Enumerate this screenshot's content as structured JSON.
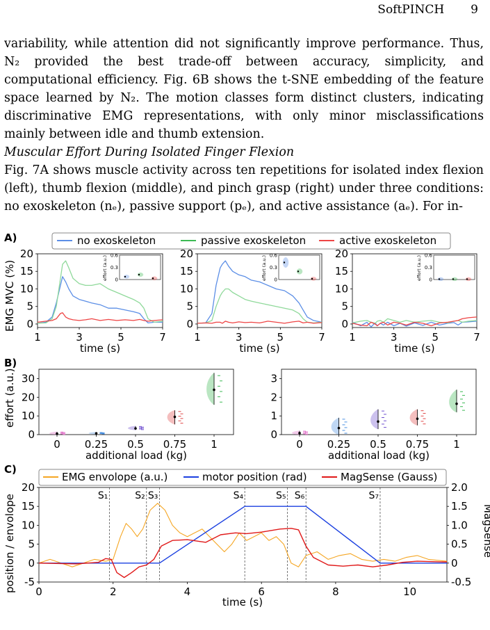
{
  "running_head": {
    "title": "SoftPINCH",
    "page": "9"
  },
  "paragraphs": [
    "variability, while attention did not significantly improve performance. Thus, N₂ provided the best trade-off between accuracy, simplicity, and computational efficiency. Fig. 6B shows the t-SNE embedding of the feature space learned by N₂. The motion classes form distinct clusters, indicating discriminative EMG representations, with only minor misclassifications mainly between idle and thumb extension."
  ],
  "subheading": "Muscular Effort During Isolated Finger Flexion",
  "paragraph2": "Fig. 7A shows muscle activity across ten repetitions for isolated index flexion (left), thumb flexion (middle), and pinch grasp (right) under three conditions: no exoskeleton (nₑ), passive support (pₑ), and active assistance (aₑ). For in-",
  "colors": {
    "no": "#5b8ee6",
    "passive": "#3cba54",
    "active": "#ee4444",
    "orange": "#f5a623",
    "blue": "#1a3fe0",
    "red": "#e01818"
  },
  "panels": {
    "A": "A)",
    "B": "B)",
    "C": "C)"
  },
  "chart_data": [
    {
      "type": "line",
      "panel": "A",
      "legend": [
        "no exoskeleton",
        "passive exoskeleton",
        "active exoskeleton"
      ],
      "ylabel": "EMG MVC (%)",
      "xlabel": "time (s)",
      "xlim": [
        1,
        7
      ],
      "ylim": [
        -1,
        20
      ],
      "xticks": [
        "1",
        "3",
        "5",
        "7"
      ],
      "yticks": [
        "0",
        "5",
        "10",
        "15",
        "20"
      ],
      "subplots": [
        {
          "name": "index flexion",
          "x": [
            1,
            1.4,
            1.7,
            1.9,
            2.1,
            2.2,
            2.35,
            2.5,
            2.7,
            3,
            3.3,
            3.6,
            4,
            4.4,
            4.8,
            5.2,
            5.6,
            5.9,
            6.1,
            6.3,
            6.6,
            7
          ],
          "series": [
            {
              "name": "no exoskeleton",
              "values": [
                0.2,
                0.5,
                2,
                6,
                11,
                13.5,
                12,
                10,
                8,
                7,
                6.5,
                6,
                5.5,
                4.5,
                4.5,
                4,
                3.5,
                3,
                1.5,
                0.3,
                0.5,
                0.5
              ]
            },
            {
              "name": "passive exoskeleton",
              "values": [
                0.2,
                0.3,
                1.5,
                5,
                13,
                17,
                18,
                16,
                13,
                11.5,
                11,
                11,
                11.5,
                10,
                9,
                8,
                7,
                6,
                4.5,
                1.5,
                0.5,
                0.8
              ]
            },
            {
              "name": "active exoskeleton",
              "values": [
                0.5,
                0.8,
                1,
                1.5,
                3,
                3.2,
                2,
                1.5,
                1.2,
                1,
                1.2,
                1.5,
                1,
                1.3,
                1,
                1.2,
                1,
                1.3,
                1,
                0.8,
                1,
                1.2
              ]
            }
          ],
          "inset": {
            "ylim": [
              0,
              0.6
            ],
            "yticks": [
              "0.6",
              "0.3",
              "0"
            ],
            "ylabel": "effort (a.u.)",
            "values": [
              0.07,
              0.12,
              0.03
            ]
          }
        },
        {
          "name": "thumb flexion",
          "x": [
            1,
            1.4,
            1.7,
            1.9,
            2.1,
            2.2,
            2.35,
            2.5,
            2.7,
            3,
            3.3,
            3.6,
            4,
            4.4,
            4.8,
            5.2,
            5.6,
            5.9,
            6.1,
            6.3,
            6.6,
            7
          ],
          "series": [
            {
              "name": "no exoskeleton",
              "values": [
                0.2,
                0.3,
                3,
                11,
                16,
                17,
                18,
                16.5,
                15,
                14,
                13.5,
                12.5,
                12,
                11,
                10,
                9.5,
                8,
                6,
                4,
                2,
                1,
                0.5
              ]
            },
            {
              "name": "passive exoskeleton",
              "values": [
                0.2,
                0.3,
                1,
                5,
                8,
                9,
                10,
                10,
                9,
                8,
                7,
                6.5,
                6,
                5.5,
                5,
                4.5,
                4,
                3,
                1.5,
                0.5,
                0.3,
                0.5
              ]
            },
            {
              "name": "active exoskeleton",
              "values": [
                0.2,
                0.3,
                0.2,
                0.5,
                0.5,
                0.2,
                0.8,
                0.5,
                0.3,
                0.6,
                0.4,
                0.5,
                0.3,
                0.8,
                0.5,
                0.2,
                0.6,
                0.8,
                0.3,
                0.5,
                0.2,
                0.4
              ]
            }
          ],
          "inset": {
            "ylim": [
              0,
              0.6
            ],
            "yticks": [
              "0.6",
              "0.3",
              "0"
            ],
            "ylabel": "effort (a.u.)",
            "values": [
              0.42,
              0.2,
              0.02
            ]
          }
        },
        {
          "name": "pinch grasp",
          "x": [
            1,
            1.4,
            1.7,
            1.9,
            2.1,
            2.2,
            2.35,
            2.5,
            2.7,
            3,
            3.3,
            3.6,
            4,
            4.4,
            4.8,
            5.2,
            5.6,
            5.9,
            6.1,
            6.3,
            6.6,
            7
          ],
          "series": [
            {
              "name": "no exoskeleton",
              "values": [
                0.5,
                -0.5,
                0.5,
                -0.8,
                0.3,
                -0.5,
                0.2,
                -0.3,
                0.5,
                -0.5,
                0.2,
                -0.6,
                0.3,
                -0.4,
                0.5,
                -0.3,
                0.2,
                0.4,
                -0.3,
                0.5,
                0.6,
                0.8
              ]
            },
            {
              "name": "passive exoskeleton",
              "values": [
                0.3,
                0.8,
                1,
                0.5,
                0.2,
                0.8,
                1,
                0.5,
                1.5,
                1,
                0.5,
                1,
                0.5,
                0.8,
                1,
                0.5,
                0.3,
                0.8,
                1,
                0.5,
                0.8,
                1
              ]
            },
            {
              "name": "active exoskeleton",
              "values": [
                0.2,
                -0.3,
                -0.5,
                0.5,
                0,
                -0.5,
                0.2,
                0.5,
                -0.3,
                0.5,
                0.2,
                -0.3,
                0.5,
                0.2,
                -0.5,
                0.3,
                0.5,
                0.8,
                1,
                1.5,
                1.8,
                2
              ]
            }
          ],
          "inset": {
            "ylim": [
              0,
              0.6
            ],
            "yticks": [
              "0.6",
              "0.3",
              "0"
            ],
            "ylabel": "effort (a.u.)",
            "values": [
              0.01,
              0.01,
              0.01
            ]
          }
        }
      ]
    },
    {
      "type": "violin",
      "panel": "B",
      "ylabel": "effort (a.u.)",
      "xlabel": "additional load (kg)",
      "categories": [
        "0",
        "0.25",
        "0.5",
        "0.75",
        "1"
      ],
      "category_colors": [
        "#e070c8",
        "#4a90e2",
        "#7050d0",
        "#e04848",
        "#3cba54"
      ],
      "subplots": [
        {
          "ylim": [
            0,
            35
          ],
          "yticks": [
            "0",
            "10",
            "20",
            "30"
          ],
          "medians": [
            0.5,
            0.7,
            3.3,
            9.5,
            24
          ],
          "ranges": [
            [
              0,
              1.5
            ],
            [
              0.3,
              1.2
            ],
            [
              2.5,
              4.5
            ],
            [
              5.5,
              13
            ],
            [
              16,
              33
            ]
          ]
        },
        {
          "ylim": [
            0,
            3.5
          ],
          "yticks": [
            "0",
            "1",
            "2",
            "3"
          ],
          "medians": [
            0.08,
            0.35,
            0.7,
            0.85,
            1.65
          ],
          "ranges": [
            [
              0,
              0.2
            ],
            [
              0,
              0.9
            ],
            [
              0.3,
              1.35
            ],
            [
              0.5,
              1.35
            ],
            [
              1.2,
              2.4
            ]
          ]
        }
      ]
    },
    {
      "type": "line",
      "panel": "C",
      "legend": [
        "EMG envolope (a.u.)",
        "motor position (rad)",
        "MagSense (Gauss)"
      ],
      "ylabel": "position / envolope",
      "ylabel_right": "MagSense",
      "xlabel": "time (s)",
      "xlim": [
        0,
        11
      ],
      "ylim": [
        -5,
        20
      ],
      "ylim_right": [
        -0.5,
        2.0
      ],
      "xticks": [
        "0",
        "2",
        "4",
        "6",
        "8",
        "10"
      ],
      "yticks": [
        "-5",
        "0",
        "5",
        "10",
        "15",
        "20"
      ],
      "yticks_right": [
        "-0.5",
        "0",
        "0.5",
        "1.0",
        "1.5",
        "2.0"
      ],
      "events": [
        {
          "label": "S₁",
          "x": 1.9
        },
        {
          "label": "S₂",
          "x": 2.9
        },
        {
          "label": "S₃",
          "x": 3.25
        },
        {
          "label": "S₄",
          "x": 5.55
        },
        {
          "label": "S₅",
          "x": 6.7
        },
        {
          "label": "S₆",
          "x": 7.2
        },
        {
          "label": "S₇",
          "x": 9.2
        }
      ],
      "series": [
        {
          "name": "EMG envolope (a.u.)",
          "x": [
            0,
            0.3,
            0.6,
            0.9,
            1.2,
            1.5,
            1.8,
            2.0,
            2.2,
            2.35,
            2.5,
            2.65,
            2.8,
            3.0,
            3.2,
            3.4,
            3.6,
            3.8,
            4.0,
            4.2,
            4.4,
            4.6,
            4.8,
            5.0,
            5.2,
            5.4,
            5.6,
            5.8,
            6.0,
            6.2,
            6.4,
            6.6,
            6.8,
            7.0,
            7.2,
            7.5,
            7.8,
            8.1,
            8.4,
            8.7,
            9.0,
            9.3,
            9.6,
            9.9,
            10.2,
            10.5,
            11
          ],
          "values": [
            0,
            1,
            0,
            -1,
            0,
            1,
            0.5,
            1,
            7,
            10.5,
            9,
            7,
            9,
            14,
            15.8,
            14,
            10,
            8,
            7,
            8,
            9,
            7,
            5,
            3,
            5,
            8,
            6,
            7,
            8,
            6,
            7,
            5,
            0,
            -1,
            2,
            3,
            1,
            2,
            2.5,
            1,
            0.5,
            1,
            0.5,
            1.5,
            2,
            1,
            0.5
          ]
        },
        {
          "name": "motor position (rad)",
          "x": [
            0,
            3.25,
            5.55,
            7.2,
            9.2,
            11
          ],
          "values": [
            0,
            0,
            15,
            15,
            0,
            0
          ]
        },
        {
          "name": "MagSense (Gauss)",
          "x": [
            0,
            1.0,
            1.6,
            1.8,
            1.95,
            2.1,
            2.3,
            2.5,
            2.7,
            2.9,
            3.1,
            3.3,
            3.6,
            4.0,
            4.5,
            4.9,
            5.3,
            5.6,
            6.0,
            6.5,
            6.8,
            7.0,
            7.2,
            7.4,
            7.8,
            8.2,
            8.6,
            9.0,
            9.4,
            9.8,
            10.2,
            11
          ],
          "values": [
            0,
            -0.02,
            0.02,
            0.12,
            0.1,
            -0.25,
            -0.38,
            -0.25,
            -0.1,
            -0.05,
            0.1,
            0.45,
            0.6,
            0.62,
            0.55,
            0.75,
            0.8,
            0.78,
            0.82,
            0.9,
            0.92,
            0.88,
            0.45,
            0.15,
            -0.05,
            -0.08,
            -0.05,
            -0.1,
            -0.05,
            0.02,
            0.05,
            0.03
          ]
        }
      ]
    }
  ]
}
